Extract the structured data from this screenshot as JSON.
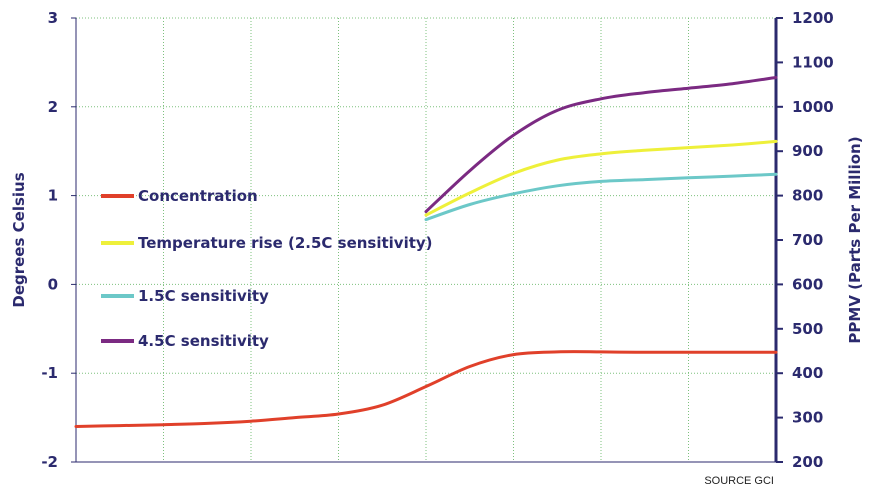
{
  "chart_data": {
    "type": "line",
    "y_left": {
      "label": "Degrees Celsius",
      "range": [
        -2,
        3
      ],
      "ticks": [
        "-2",
        "-1",
        "0",
        "1",
        "2",
        "3"
      ],
      "tick_values": [
        -2,
        -1,
        0,
        1,
        2,
        3
      ]
    },
    "y_right": {
      "label": "PPMV (Parts Per Million)",
      "range": [
        200,
        1200
      ],
      "ticks": [
        "200",
        "300",
        "400",
        "500",
        "600",
        "700",
        "800",
        "900",
        "1000",
        "1100",
        "1200"
      ],
      "tick_values": [
        200,
        300,
        400,
        500,
        600,
        700,
        800,
        900,
        1000,
        1100,
        1200
      ]
    },
    "x_grid_divisions": 8,
    "grid": true,
    "source": "SOURCE GCI",
    "series": [
      {
        "name": "Concentration",
        "axis": "right",
        "color": "#e0402a",
        "points": [
          [
            0,
            280
          ],
          [
            0.5,
            282
          ],
          [
            1,
            284
          ],
          [
            1.5,
            287
          ],
          [
            2,
            292
          ],
          [
            2.5,
            300
          ],
          [
            3,
            308
          ],
          [
            3.5,
            328
          ],
          [
            4,
            370
          ],
          [
            4.5,
            415
          ],
          [
            5,
            442
          ],
          [
            5.5,
            448
          ],
          [
            6,
            448
          ],
          [
            6.5,
            447
          ],
          [
            7,
            447
          ],
          [
            7.5,
            447
          ],
          [
            8,
            447
          ]
        ]
      },
      {
        "name": "Temperature rise (2.5C sensitivity)",
        "axis": "left",
        "color": "#eef03a",
        "points": [
          [
            4,
            0.78
          ],
          [
            4.5,
            1.03
          ],
          [
            5,
            1.25
          ],
          [
            5.5,
            1.4
          ],
          [
            6,
            1.47
          ],
          [
            6.5,
            1.51
          ],
          [
            7,
            1.54
          ],
          [
            7.5,
            1.57
          ],
          [
            8,
            1.61
          ]
        ]
      },
      {
        "name": "1.5C sensitivity",
        "axis": "left",
        "color": "#6cc8c8",
        "points": [
          [
            4,
            0.73
          ],
          [
            4.5,
            0.9
          ],
          [
            5,
            1.02
          ],
          [
            5.5,
            1.11
          ],
          [
            6,
            1.16
          ],
          [
            6.5,
            1.18
          ],
          [
            7,
            1.2
          ],
          [
            7.5,
            1.22
          ],
          [
            8,
            1.24
          ]
        ]
      },
      {
        "name": "4.5C sensitivity",
        "axis": "left",
        "color": "#7b2a82",
        "points": [
          [
            4,
            0.82
          ],
          [
            4.5,
            1.28
          ],
          [
            5,
            1.68
          ],
          [
            5.5,
            1.96
          ],
          [
            6,
            2.09
          ],
          [
            6.5,
            2.16
          ],
          [
            7,
            2.21
          ],
          [
            7.5,
            2.26
          ],
          [
            8,
            2.33
          ]
        ]
      }
    ]
  }
}
